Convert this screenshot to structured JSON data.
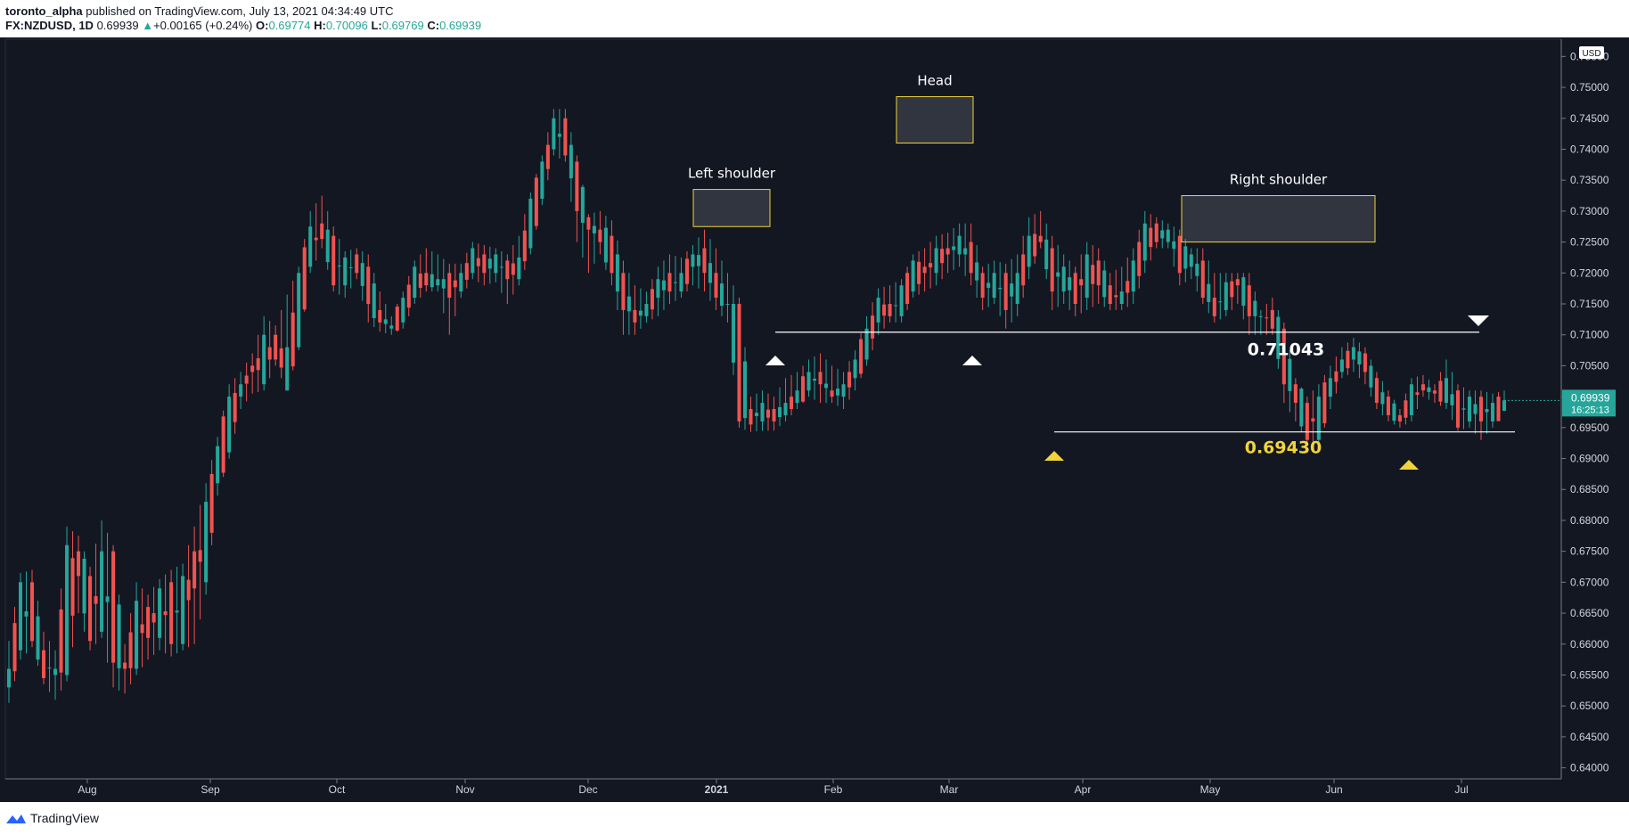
{
  "header": {
    "author": "toronto_alpha",
    "published_text": " published on TradingView.com, July 13, 2021 04:34:49 UTC",
    "symbol": "FX:NZDUSD, 1D",
    "last": "0.69939",
    "change": "+0.00165 (+0.24%)",
    "open_label": "O:",
    "open": "0.69774",
    "high_label": "H:",
    "high": "0.70096",
    "low_label": "L:",
    "low": "0.69769",
    "close_label": "C:",
    "close": "0.69939"
  },
  "footer": {
    "brand": "TradingView",
    "logo_icon": "tradingview-logo-icon"
  },
  "colors": {
    "background": "#131722",
    "up": "#26a69a",
    "down": "#ef5350",
    "grid": "#363a45",
    "text": "#d1d4dc",
    "annotation_box": "#f0d43a",
    "yellow_level": "#f0d43a"
  },
  "chart_data": {
    "type": "candlestick",
    "symbol": "FX:NZDUSD",
    "timeframe": "1D",
    "currency_label": "USD",
    "ylim": [
      0.6385,
      0.7575
    ],
    "y_ticks": [
      "0.75500",
      "0.75000",
      "0.74500",
      "0.74000",
      "0.73500",
      "0.73000",
      "0.72500",
      "0.72000",
      "0.71500",
      "0.71000",
      "0.70500",
      "0.70000",
      "0.69500",
      "0.69000",
      "0.68500",
      "0.68000",
      "0.67500",
      "0.67000",
      "0.66500",
      "0.66000",
      "0.65500",
      "0.65000",
      "0.64500",
      "0.64000"
    ],
    "x_ticks": [
      "Aug",
      "Sep",
      "Oct",
      "Nov",
      "Dec",
      "2021",
      "Feb",
      "Mar",
      "Apr",
      "May",
      "Jun",
      "Jul"
    ],
    "price_tag": {
      "value": "0.69939",
      "countdown": "16:25:13"
    },
    "levels": [
      {
        "label": "0.71043",
        "value": 0.71043,
        "from": "Jan 14",
        "to": "Jul 1"
      },
      {
        "label": "0.69430",
        "value": 0.6943,
        "from": "Mar 24",
        "to": "Jul 13"
      }
    ],
    "annotations": [
      {
        "label": "Left shoulder",
        "price_range": [
          0.7275,
          0.7335
        ]
      },
      {
        "label": "Head",
        "price_range": [
          0.741,
          0.7485
        ]
      },
      {
        "label": "Right shoulder",
        "price_range": [
          0.725,
          0.7325
        ]
      }
    ],
    "markers": [
      {
        "kind": "up-triangle",
        "color": "white",
        "near": "Jan 15"
      },
      {
        "kind": "up-triangle",
        "color": "white",
        "near": "Mar 5"
      },
      {
        "kind": "up-triangle",
        "color": "yellow",
        "near": "Mar 24"
      },
      {
        "kind": "up-triangle",
        "color": "yellow",
        "near": "Jun 21"
      },
      {
        "kind": "down-triangle",
        "color": "white",
        "near": "Jul 1"
      }
    ],
    "anchors": [
      [
        0.653,
        0.656,
        0.6505,
        0.6605
      ],
      [
        0.659,
        0.67,
        0.6575,
        0.6715
      ],
      [
        0.67,
        0.6605,
        0.6595,
        0.672
      ],
      [
        0.659,
        0.6545,
        0.6535,
        0.662
      ],
      [
        0.655,
        0.656,
        0.651,
        0.659
      ],
      [
        0.655,
        0.676,
        0.654,
        0.679
      ],
      [
        0.675,
        0.671,
        0.665,
        0.6775
      ],
      [
        0.671,
        0.6605,
        0.659,
        0.6725
      ],
      [
        0.662,
        0.675,
        0.661,
        0.68
      ],
      [
        0.675,
        0.657,
        0.653,
        0.676
      ],
      [
        0.657,
        0.656,
        0.652,
        0.66
      ],
      [
        0.656,
        0.667,
        0.655,
        0.67
      ],
      [
        0.666,
        0.661,
        0.6575,
        0.668
      ],
      [
        0.661,
        0.669,
        0.659,
        0.6705
      ],
      [
        0.67,
        0.66,
        0.658,
        0.672
      ],
      [
        0.66,
        0.671,
        0.659,
        0.673
      ],
      [
        0.675,
        0.669,
        0.66,
        0.679
      ],
      [
        0.67,
        0.683,
        0.668,
        0.686
      ],
      [
        0.686,
        0.692,
        0.684,
        0.6935
      ],
      [
        0.691,
        0.7,
        0.69,
        0.702
      ],
      [
        0.7,
        0.702,
        0.698,
        0.704
      ],
      [
        0.705,
        0.704,
        0.7005,
        0.707
      ],
      [
        0.702,
        0.71,
        0.701,
        0.713
      ],
      [
        0.71,
        0.706,
        0.705,
        0.7115
      ],
      [
        0.701,
        0.708,
        0.701,
        0.7165
      ],
      [
        0.708,
        0.72,
        0.7075,
        0.721
      ],
      [
        0.721,
        0.7275,
        0.72,
        0.73
      ],
      [
        0.728,
        0.7255,
        0.724,
        0.7325
      ],
      [
        0.726,
        0.718,
        0.717,
        0.7275
      ],
      [
        0.718,
        0.7225,
        0.716,
        0.7235
      ],
      [
        0.723,
        0.72,
        0.719,
        0.724
      ],
      [
        0.721,
        0.715,
        0.712,
        0.723
      ],
      [
        0.714,
        0.712,
        0.7105,
        0.717
      ],
      [
        0.711,
        0.7115,
        0.71,
        0.713
      ],
      [
        0.712,
        0.716,
        0.711,
        0.717
      ],
      [
        0.716,
        0.721,
        0.715,
        0.722
      ],
      [
        0.72,
        0.718,
        0.717,
        0.724
      ],
      [
        0.718,
        0.719,
        0.717,
        0.723
      ],
      [
        0.72,
        0.716,
        0.71,
        0.7215
      ],
      [
        0.717,
        0.72,
        0.716,
        0.7215
      ],
      [
        0.72,
        0.724,
        0.719,
        0.725
      ],
      [
        0.723,
        0.72,
        0.718,
        0.7245
      ],
      [
        0.72,
        0.723,
        0.7185,
        0.724
      ],
      [
        0.722,
        0.719,
        0.715,
        0.723
      ],
      [
        0.719,
        0.7225,
        0.718,
        0.726
      ],
      [
        0.724,
        0.732,
        0.723,
        0.733
      ],
      [
        0.732,
        0.738,
        0.731,
        0.739
      ],
      [
        0.74,
        0.745,
        0.739,
        0.7465
      ],
      [
        0.745,
        0.739,
        0.738,
        0.7465
      ],
      [
        0.738,
        0.73,
        0.725,
        0.739
      ],
      [
        0.729,
        0.727,
        0.72,
        0.7295
      ],
      [
        0.727,
        0.725,
        0.723,
        0.73
      ],
      [
        0.726,
        0.72,
        0.718,
        0.7285
      ],
      [
        0.72,
        0.714,
        0.71,
        0.722
      ],
      [
        0.714,
        0.712,
        0.71,
        0.718
      ],
      [
        0.713,
        0.715,
        0.712,
        0.717
      ],
      [
        0.716,
        0.719,
        0.713,
        0.721
      ],
      [
        0.72,
        0.717,
        0.715,
        0.723
      ],
      [
        0.717,
        0.72,
        0.716,
        0.7225
      ],
      [
        0.721,
        0.723,
        0.718,
        0.7245
      ],
      [
        0.724,
        0.72,
        0.717,
        0.727
      ],
      [
        0.72,
        0.716,
        0.714,
        0.724
      ],
      [
        0.715,
        0.715,
        0.712,
        0.72
      ],
      [
        0.715,
        0.696,
        0.695,
        0.716
      ],
      [
        0.698,
        0.6955,
        0.6943,
        0.7
      ],
      [
        0.696,
        0.699,
        0.6945,
        0.701
      ],
      [
        0.698,
        0.696,
        0.6945,
        0.7
      ],
      [
        0.697,
        0.699,
        0.696,
        0.703
      ],
      [
        0.699,
        0.701,
        0.698,
        0.704
      ],
      [
        0.701,
        0.704,
        0.7,
        0.706
      ],
      [
        0.704,
        0.702,
        0.699,
        0.707
      ],
      [
        0.701,
        0.7,
        0.699,
        0.705
      ],
      [
        0.7,
        0.702,
        0.698,
        0.704
      ],
      [
        0.703,
        0.706,
        0.701,
        0.7075
      ],
      [
        0.706,
        0.711,
        0.705,
        0.713
      ],
      [
        0.712,
        0.716,
        0.71,
        0.7175
      ],
      [
        0.715,
        0.713,
        0.712,
        0.718
      ],
      [
        0.713,
        0.718,
        0.712,
        0.719
      ],
      [
        0.717,
        0.722,
        0.716,
        0.723
      ],
      [
        0.721,
        0.72,
        0.717,
        0.724
      ],
      [
        0.72,
        0.724,
        0.718,
        0.726
      ],
      [
        0.724,
        0.723,
        0.72,
        0.7265
      ],
      [
        0.723,
        0.726,
        0.721,
        0.728
      ],
      [
        0.725,
        0.72,
        0.718,
        0.728
      ],
      [
        0.72,
        0.716,
        0.714,
        0.721
      ],
      [
        0.716,
        0.72,
        0.715,
        0.722
      ],
      [
        0.72,
        0.714,
        0.711,
        0.7215
      ],
      [
        0.715,
        0.72,
        0.713,
        0.723
      ],
      [
        0.721,
        0.726,
        0.719,
        0.729
      ],
      [
        0.726,
        0.725,
        0.724,
        0.73
      ],
      [
        0.724,
        0.717,
        0.714,
        0.726
      ],
      [
        0.717,
        0.721,
        0.715,
        0.723
      ],
      [
        0.72,
        0.715,
        0.713,
        0.721
      ],
      [
        0.716,
        0.723,
        0.714,
        0.725
      ],
      [
        0.722,
        0.718,
        0.715,
        0.724
      ],
      [
        0.718,
        0.715,
        0.714,
        0.72
      ],
      [
        0.715,
        0.717,
        0.714,
        0.721
      ],
      [
        0.717,
        0.722,
        0.715,
        0.724
      ],
      [
        0.722,
        0.728,
        0.72,
        0.73
      ],
      [
        0.728,
        0.725,
        0.724,
        0.729
      ],
      [
        0.725,
        0.727,
        0.724,
        0.728
      ],
      [
        0.726,
        0.72,
        0.718,
        0.727
      ],
      [
        0.721,
        0.723,
        0.719,
        0.724
      ],
      [
        0.722,
        0.716,
        0.715,
        0.724
      ],
      [
        0.716,
        0.713,
        0.712,
        0.72
      ],
      [
        0.714,
        0.7185,
        0.713,
        0.72
      ],
      [
        0.719,
        0.718,
        0.715,
        0.72
      ],
      [
        0.718,
        0.713,
        0.71,
        0.72
      ],
      [
        0.713,
        0.713,
        0.71,
        0.714
      ],
      [
        0.714,
        0.711,
        0.71,
        0.716
      ],
      [
        0.711,
        0.702,
        0.699,
        0.712
      ],
      [
        0.702,
        0.699,
        0.696,
        0.703
      ],
      [
        0.699,
        0.693,
        0.6925,
        0.7
      ],
      [
        0.693,
        0.7,
        0.692,
        0.702
      ],
      [
        0.7,
        0.703,
        0.698,
        0.705
      ],
      [
        0.704,
        0.706,
        0.703,
        0.708
      ],
      [
        0.706,
        0.708,
        0.704,
        0.7095
      ],
      [
        0.707,
        0.704,
        0.702,
        0.708
      ],
      [
        0.703,
        0.699,
        0.698,
        0.704
      ],
      [
        0.7,
        0.697,
        0.696,
        0.701
      ],
      [
        0.697,
        0.696,
        0.695,
        0.698
      ],
      [
        0.697,
        0.702,
        0.696,
        0.703
      ],
      [
        0.702,
        0.701,
        0.7,
        0.7035
      ],
      [
        0.701,
        0.7005,
        0.699,
        0.702
      ],
      [
        0.699,
        0.703,
        0.698,
        0.706
      ],
      [
        0.701,
        0.695,
        0.6945,
        0.702
      ],
      [
        0.696,
        0.7,
        0.695,
        0.701
      ],
      [
        0.7,
        0.696,
        0.693,
        0.701
      ],
      [
        0.696,
        0.699,
        0.695,
        0.7005
      ],
      [
        0.6977,
        0.6994,
        0.6977,
        0.701
      ]
    ],
    "ohlc_note": "values are open, high, low, close per daily candle; anchors are reference candles, intermediate candles interpolated to trading days Jul 2020 – Jul 13 2021"
  }
}
